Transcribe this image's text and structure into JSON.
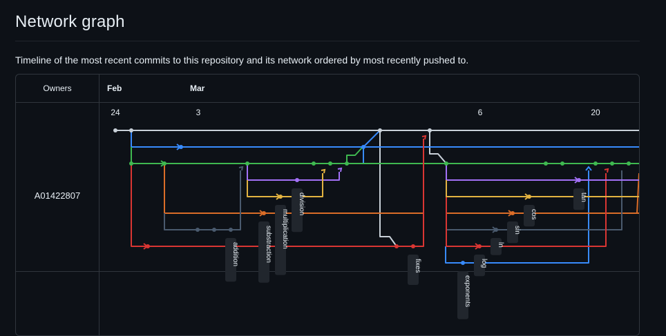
{
  "page": {
    "title": "Network graph",
    "description": "Timeline of the most recent commits to this repository and its network ordered by most recently pushed to."
  },
  "graph": {
    "owners_header": "Owners",
    "months": [
      "Feb",
      "Mar"
    ],
    "days": [
      "24",
      "3",
      "6",
      "20"
    ],
    "owner": "A01422807",
    "branch_labels": [
      "addition",
      "substraction",
      "multiplication",
      "division",
      "fixes",
      "exponents",
      "log",
      "ln",
      "sin",
      "cos",
      "tan"
    ],
    "colors": {
      "master": "#c9d1d9",
      "blue": "#388bfd",
      "green": "#3fb950",
      "orange": "#db6d28",
      "slate": "#4a5a6e",
      "red": "#da3633",
      "purple": "#a371f7",
      "yellow": "#e3b341",
      "label_bg": "#21262d"
    }
  }
}
